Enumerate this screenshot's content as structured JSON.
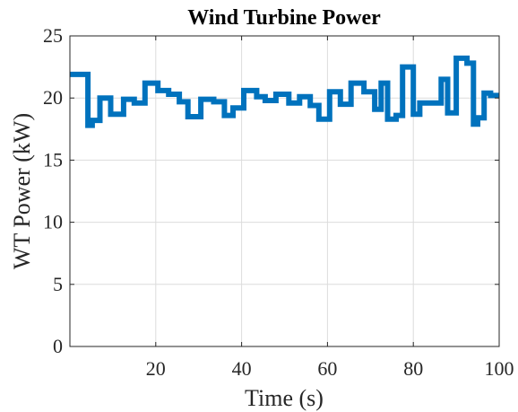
{
  "chart_data": {
    "type": "line",
    "title": "Wind Turbine Power",
    "xlabel": "Time (s)",
    "ylabel": "WT Power (kW)",
    "xlim": [
      0,
      100
    ],
    "ylim": [
      0,
      25
    ],
    "xticks": [
      20,
      40,
      60,
      80,
      100
    ],
    "yticks": [
      0,
      5,
      10,
      15,
      20,
      25
    ],
    "grid": true,
    "series": [
      {
        "color": "#0072BD",
        "x": [
          0,
          4.2,
          4.2,
          5.2,
          5.2,
          7,
          7,
          9.5,
          9.5,
          12.5,
          12.5,
          15,
          15,
          17.5,
          17.5,
          20.5,
          20.5,
          23,
          23,
          25.5,
          25.5,
          27.5,
          27.5,
          30.5,
          30.5,
          33.5,
          33.5,
          36,
          36,
          38,
          38,
          40.5,
          40.5,
          43.5,
          43.5,
          45.5,
          45.5,
          48,
          48,
          51,
          51,
          53.5,
          53.5,
          56,
          56,
          58,
          58,
          60.5,
          60.5,
          63,
          63,
          65.5,
          65.5,
          68.5,
          68.5,
          71,
          71,
          72.5,
          72.5,
          74,
          74,
          76,
          76,
          77.5,
          77.5,
          80,
          80,
          81.5,
          81.5,
          83.5,
          83.5,
          86.5,
          86.5,
          88,
          88,
          90,
          90,
          92.5,
          92.5,
          94,
          94,
          95,
          95,
          96.5,
          96.5,
          98,
          98,
          100
        ],
        "y": [
          21.9,
          21.9,
          17.8,
          17.8,
          18.2,
          18.2,
          20.0,
          20.0,
          18.7,
          18.7,
          19.9,
          19.9,
          19.6,
          19.6,
          21.2,
          21.2,
          20.6,
          20.6,
          20.3,
          20.3,
          19.7,
          19.7,
          18.5,
          18.5,
          19.9,
          19.9,
          19.7,
          19.7,
          18.6,
          18.6,
          19.2,
          19.2,
          20.6,
          20.6,
          20.1,
          20.1,
          19.8,
          19.8,
          20.3,
          20.3,
          19.6,
          19.6,
          20.1,
          20.1,
          19.4,
          19.4,
          18.3,
          18.3,
          20.5,
          20.5,
          19.5,
          19.5,
          21.2,
          21.2,
          20.5,
          20.5,
          19.1,
          19.1,
          21.2,
          21.2,
          18.3,
          18.3,
          18.6,
          18.6,
          22.5,
          22.5,
          18.7,
          18.7,
          19.6,
          19.6,
          19.6,
          19.6,
          21.5,
          21.5,
          18.8,
          18.8,
          23.2,
          23.2,
          22.8,
          22.8,
          17.9,
          17.9,
          18.4,
          18.4,
          20.4,
          20.4,
          20.2,
          20.2
        ]
      }
    ]
  }
}
